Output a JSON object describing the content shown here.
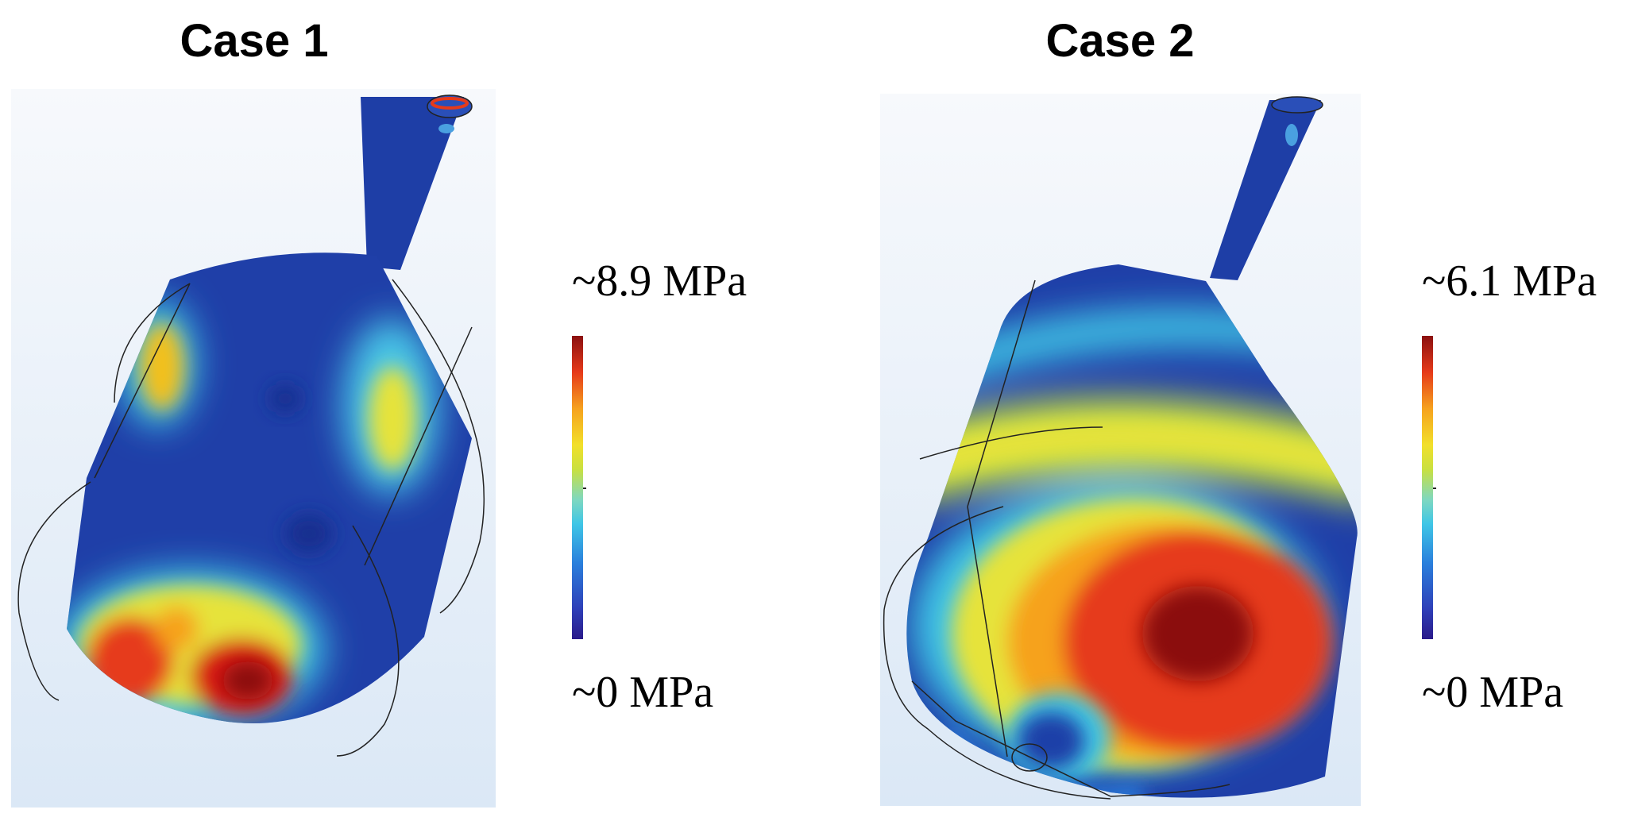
{
  "cases": [
    {
      "title": "Case 1",
      "colorbar": {
        "max_label": "~8.9 MPa",
        "min_label": "~0 MPa"
      }
    },
    {
      "title": "Case 2",
      "colorbar": {
        "max_label": "~6.1 MPa",
        "min_label": "~0 MPa"
      }
    }
  ],
  "colors": {
    "low": "#1f3fa8",
    "mid": "#e6e33a",
    "high": "#c81414",
    "background_top": "#f7f9fc",
    "background_bottom": "#dbe8f6"
  }
}
